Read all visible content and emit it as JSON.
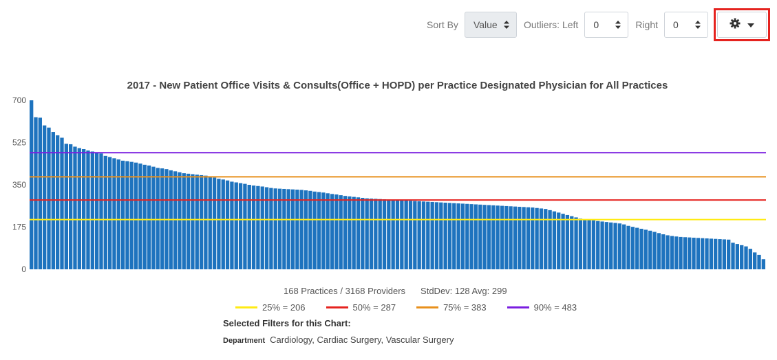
{
  "toolbar": {
    "sort_label": "Sort By",
    "sort_value": "Value",
    "outliers_left_label": "Outliers: Left",
    "outliers_left_value": "0",
    "outliers_right_label": "Right",
    "outliers_right_value": "0",
    "settings_icon": "gear-icon",
    "highlight_color": "#e5231f"
  },
  "footer": {
    "practices": "168 Practices / 3168 Providers",
    "stats": "StdDev: 128 Avg: 299",
    "filters_title": "Selected Filters for this Chart:",
    "filter_key": "Department",
    "filter_value": "Cardiology, Cardiac Surgery, Vascular Surgery"
  },
  "chart_data": {
    "type": "bar",
    "title": "2017 - New Patient Office Visits & Consults(Office + HOPD) per Practice Designated Physician for All Practices",
    "xlabel": "",
    "ylabel": "",
    "ylim": [
      0,
      700
    ],
    "yticks": [
      "0",
      "175",
      "350",
      "525",
      "700"
    ],
    "bar_color": "#1e73be",
    "grid": false,
    "legend_position": "bottom",
    "values": [
      700,
      630,
      628,
      596,
      587,
      569,
      555,
      545,
      520,
      518,
      508,
      502,
      498,
      492,
      488,
      485,
      480,
      470,
      465,
      460,
      455,
      450,
      448,
      445,
      442,
      438,
      433,
      430,
      425,
      420,
      418,
      415,
      410,
      406,
      402,
      398,
      396,
      394,
      392,
      390,
      388,
      385,
      380,
      375,
      372,
      368,
      363,
      360,
      357,
      354,
      350,
      347,
      345,
      343,
      340,
      337,
      335,
      334,
      333,
      332,
      331,
      330,
      329,
      327,
      325,
      322,
      320,
      318,
      315,
      312,
      310,
      307,
      304,
      302,
      300,
      298,
      296,
      294,
      293,
      292,
      291,
      290,
      289,
      288,
      287,
      286,
      285,
      284,
      283,
      282,
      281,
      280,
      279,
      278,
      277,
      276,
      275,
      274,
      273,
      272,
      271,
      270,
      269,
      268,
      267,
      266,
      265,
      264,
      263,
      262,
      261,
      260,
      259,
      258,
      257,
      256,
      254,
      252,
      250,
      245,
      240,
      235,
      230,
      225,
      220,
      215,
      210,
      207,
      205,
      203,
      200,
      198,
      196,
      194,
      192,
      190,
      186,
      180,
      176,
      172,
      168,
      164,
      160,
      155,
      150,
      145,
      141,
      138,
      136,
      134,
      133,
      132,
      131,
      130,
      129,
      128,
      127,
      126,
      125,
      124,
      123,
      110,
      105,
      100,
      95,
      85,
      70,
      60,
      42
    ],
    "reference_lines": [
      {
        "label": "25% = 206",
        "value": 206,
        "color": "#ffeb14"
      },
      {
        "label": "50% = 287",
        "value": 287,
        "color": "#e5231f"
      },
      {
        "label": "75% = 383",
        "value": 383,
        "color": "#e8901c"
      },
      {
        "label": "90% = 483",
        "value": 483,
        "color": "#7a1ee0"
      }
    ]
  }
}
